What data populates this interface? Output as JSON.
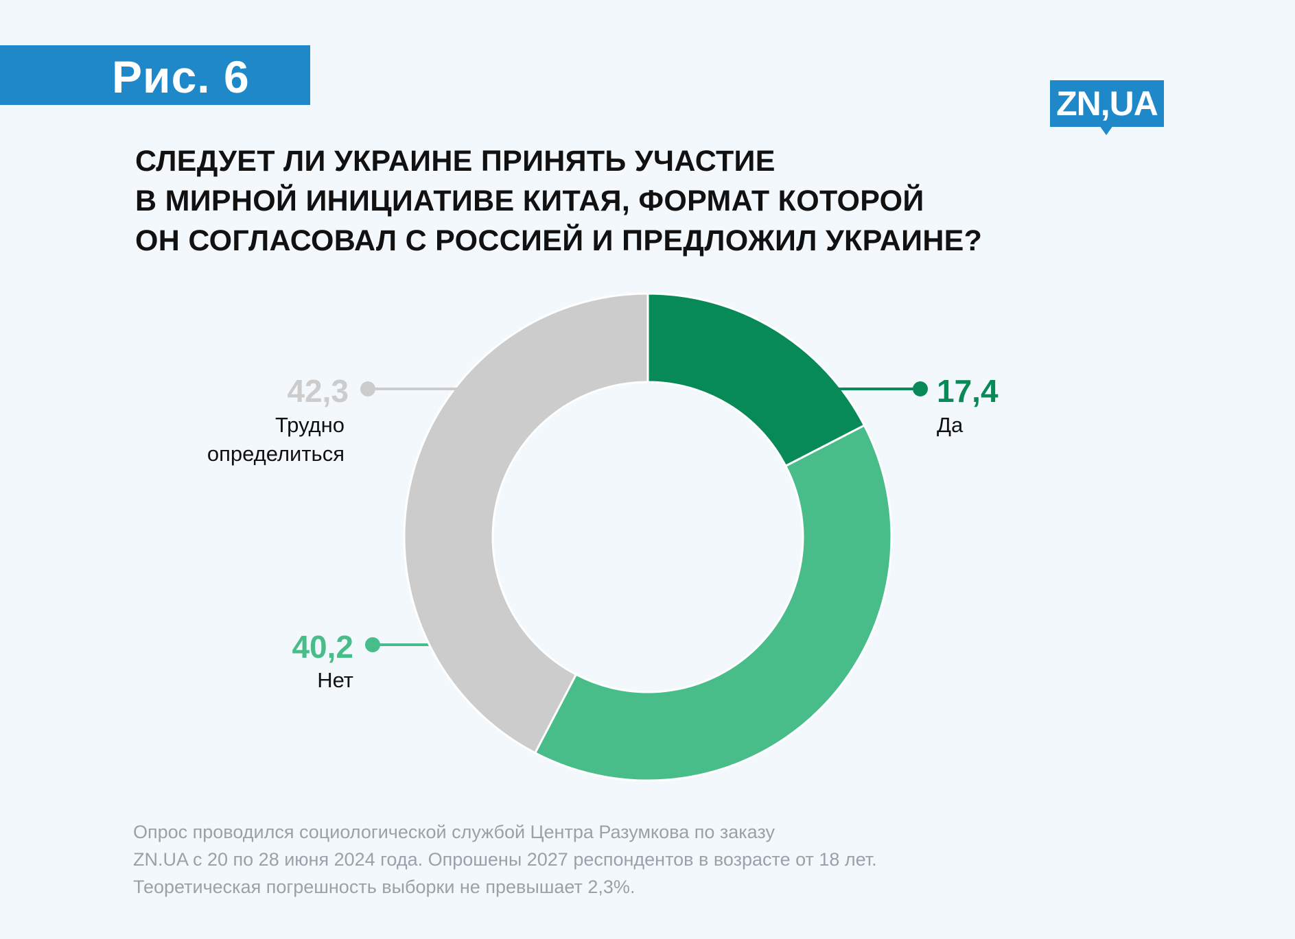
{
  "figure_label": "Рис. 6",
  "logo_text": "ZN,UA",
  "title_lines": [
    "СЛЕДУЕТ ЛИ УКРАИНЕ ПРИНЯТЬ УЧАСТИЕ",
    "В МИРНОЙ ИНИЦИАТИВЕ КИТАЯ, ФОРМАТ КОТОРОЙ",
    "ОН СОГЛАСОВАЛ С РОССИЕЙ И ПРЕДЛОЖИЛ УКРАИНЕ?"
  ],
  "chart_data": {
    "type": "pie",
    "variant": "donut",
    "title": "Следует ли Украине принять участие в мирной инициативе Китая, формат которой он согласовал с Россией и предложил Украине?",
    "slices": [
      {
        "value_label": "17,4",
        "label_lines": [
          "Да"
        ],
        "value": 17.4,
        "color": "#078a57"
      },
      {
        "value_label": "40,2",
        "label_lines": [
          "Нет"
        ],
        "value": 40.2,
        "color": "#48bd89"
      },
      {
        "value_label": "42,3",
        "label_lines": [
          "Трудно",
          "определиться"
        ],
        "value": 42.3,
        "color": "#cccccc"
      }
    ]
  },
  "colors": {
    "brand": "#1e88c9",
    "yes": "#078a57",
    "no": "#48bd89",
    "undecided": "#cccccc",
    "background": "#f3f8fd"
  },
  "footnote_lines": [
    "Опрос проводился социологической службой Центра Разумкова по заказу",
    "ZN.UA с 20 по 28 июня 2024 года. Опрошены 2027 респондентов в возрасте от 18 лет.",
    "Теоретическая погрешность выборки не превышает 2,3%."
  ]
}
